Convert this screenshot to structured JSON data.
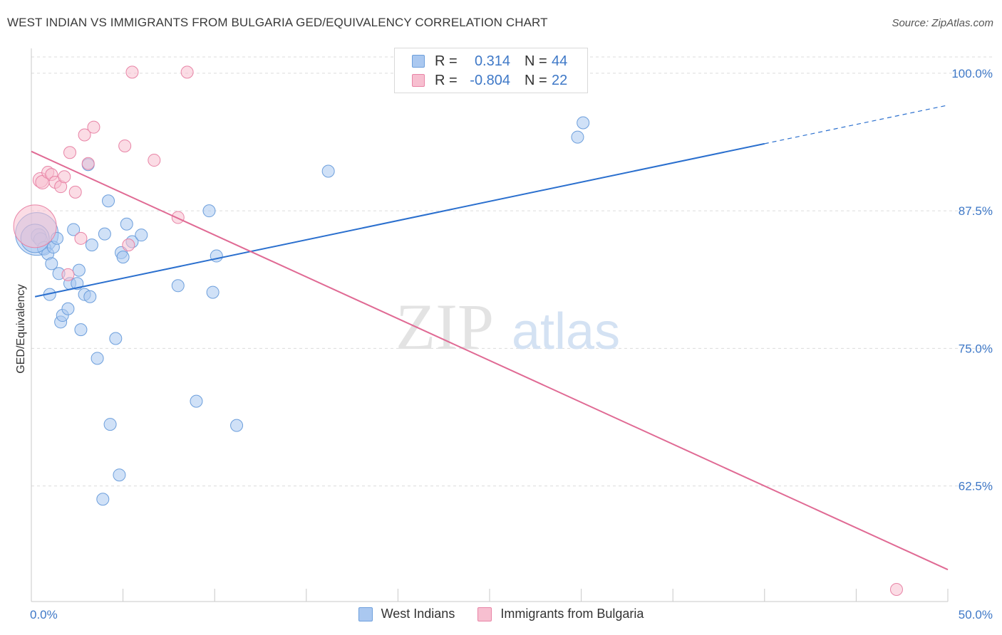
{
  "title": "WEST INDIAN VS IMMIGRANTS FROM BULGARIA GED/EQUIVALENCY CORRELATION CHART",
  "source": "Source: ZipAtlas.com",
  "watermark": {
    "zip": "ZIP",
    "atlas": "atlas"
  },
  "legend_top": {
    "rows": [
      {
        "r_label": "R =",
        "r_value": "0.314",
        "n_label": "N =",
        "n_value": "44",
        "color": "#aac8f0",
        "border": "#6d9fdc"
      },
      {
        "r_label": "R =",
        "r_value": "-0.804",
        "n_label": "N =",
        "n_value": "22",
        "color": "#f7bfd0",
        "border": "#e884a6"
      }
    ]
  },
  "legend_bottom": [
    {
      "label": "West Indians",
      "color": "#aac8f0",
      "border": "#6d9fdc"
    },
    {
      "label": "Immigrants from Bulgaria",
      "color": "#f7bfd0",
      "border": "#e884a6"
    }
  ],
  "chart_data": {
    "type": "scatter",
    "title": "WEST INDIAN VS IMMIGRANTS FROM BULGARIA GED/EQUIVALENCY CORRELATION CHART",
    "xlabel": "",
    "ylabel": "GED/Equivalency",
    "xlim": [
      0,
      50
    ],
    "ylim": [
      52,
      102
    ],
    "x_tick_labels": [
      "0.0%",
      "50.0%"
    ],
    "y_ticks": [
      62.5,
      75.0,
      87.5,
      100.0
    ],
    "y_tick_labels": [
      "62.5%",
      "75.0%",
      "87.5%",
      "100.0%"
    ],
    "grid": true,
    "legend_position": "top-center",
    "series": [
      {
        "name": "West Indians",
        "color": "#6d9fdc",
        "fill": "#aac8f0",
        "line_color": "#2a6fce",
        "trend": {
          "x0": 0.2,
          "y0": 79.7,
          "x1": 40.0,
          "y1": 93.6,
          "dash_to_x": 50.0,
          "dash_to_y": 97.1
        },
        "points": [
          [
            0.3,
            85.4
          ],
          [
            0.4,
            85.2
          ],
          [
            0.5,
            84.9
          ],
          [
            0.7,
            84.1
          ],
          [
            0.9,
            83.6
          ],
          [
            1.1,
            82.7
          ],
          [
            1.0,
            79.9
          ],
          [
            1.2,
            84.2
          ],
          [
            1.4,
            85.0
          ],
          [
            1.5,
            81.8
          ],
          [
            1.6,
            77.4
          ],
          [
            1.7,
            78.0
          ],
          [
            2.0,
            78.6
          ],
          [
            2.1,
            80.9
          ],
          [
            2.3,
            85.8
          ],
          [
            2.5,
            80.9
          ],
          [
            2.6,
            82.1
          ],
          [
            2.7,
            76.7
          ],
          [
            2.9,
            79.9
          ],
          [
            3.1,
            91.7
          ],
          [
            3.2,
            79.7
          ],
          [
            3.3,
            84.4
          ],
          [
            3.6,
            74.1
          ],
          [
            4.0,
            85.4
          ],
          [
            4.2,
            88.4
          ],
          [
            4.3,
            68.1
          ],
          [
            4.6,
            75.9
          ],
          [
            4.8,
            63.5
          ],
          [
            4.9,
            83.7
          ],
          [
            5.0,
            83.3
          ],
          [
            5.2,
            86.3
          ],
          [
            5.5,
            84.7
          ],
          [
            6.0,
            85.3
          ],
          [
            8.0,
            80.7
          ],
          [
            9.0,
            70.2
          ],
          [
            9.7,
            87.5
          ],
          [
            9.9,
            80.1
          ],
          [
            10.1,
            83.4
          ],
          [
            11.2,
            68.0
          ],
          [
            3.9,
            61.3
          ],
          [
            16.2,
            91.1
          ],
          [
            29.8,
            94.2
          ],
          [
            30.1,
            95.5
          ],
          [
            0.2,
            85.0
          ]
        ],
        "sizes": [
          30,
          12,
          11,
          11,
          10,
          10,
          10,
          10,
          10,
          10,
          10,
          10,
          10,
          10,
          10,
          10,
          10,
          10,
          10,
          10,
          10,
          10,
          10,
          10,
          10,
          10,
          10,
          10,
          10,
          10,
          10,
          10,
          10,
          10,
          10,
          10,
          10,
          10,
          10,
          10,
          10,
          10,
          10,
          20
        ]
      },
      {
        "name": "Immigrants from Bulgaria",
        "color": "#e884a6",
        "fill": "#f7bfd0",
        "line_color": "#e06a94",
        "trend": {
          "x0": 0.0,
          "y0": 92.9,
          "x1": 50.0,
          "y1": 54.9
        },
        "points": [
          [
            0.2,
            86.1
          ],
          [
            0.5,
            90.3
          ],
          [
            0.6,
            90.1
          ],
          [
            0.9,
            91.0
          ],
          [
            1.1,
            90.8
          ],
          [
            1.3,
            90.1
          ],
          [
            1.6,
            89.7
          ],
          [
            1.8,
            90.6
          ],
          [
            2.1,
            92.8
          ],
          [
            2.4,
            89.2
          ],
          [
            2.7,
            85.0
          ],
          [
            2.9,
            94.4
          ],
          [
            3.1,
            91.8
          ],
          [
            3.4,
            95.1
          ],
          [
            2.0,
            81.7
          ],
          [
            5.1,
            93.4
          ],
          [
            5.3,
            84.4
          ],
          [
            5.5,
            100.1
          ],
          [
            6.7,
            92.1
          ],
          [
            8.0,
            86.9
          ],
          [
            8.5,
            100.1
          ],
          [
            47.2,
            53.1
          ]
        ],
        "sizes": [
          30,
          12,
          11,
          10,
          10,
          10,
          10,
          10,
          10,
          10,
          10,
          10,
          10,
          10,
          10,
          10,
          10,
          10,
          10,
          10,
          10,
          10
        ]
      }
    ]
  }
}
